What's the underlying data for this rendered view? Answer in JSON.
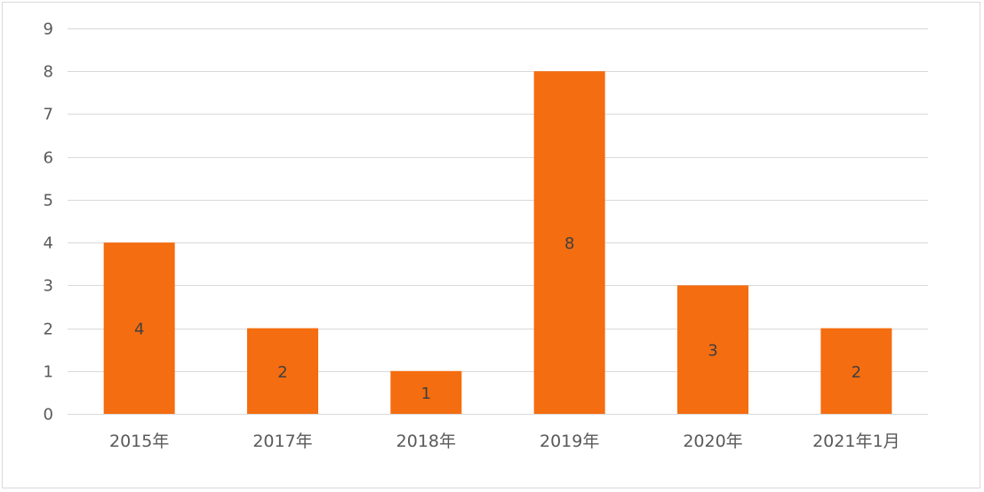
{
  "chart_data": {
    "type": "bar",
    "categories": [
      "2015年",
      "2017年",
      "2018年",
      "2019年",
      "2020年",
      "2021年1月"
    ],
    "values": [
      4,
      2,
      1,
      8,
      3,
      2
    ],
    "title": "",
    "xlabel": "",
    "ylabel": "",
    "ylim": [
      0,
      9
    ],
    "yticks": [
      0,
      1,
      2,
      3,
      4,
      5,
      6,
      7,
      8,
      9
    ],
    "grid": true,
    "legend": "none",
    "data_labels": true,
    "bar_color": "#F46D10",
    "grid_color": "#D9D9D9",
    "text_color": "#595959"
  }
}
